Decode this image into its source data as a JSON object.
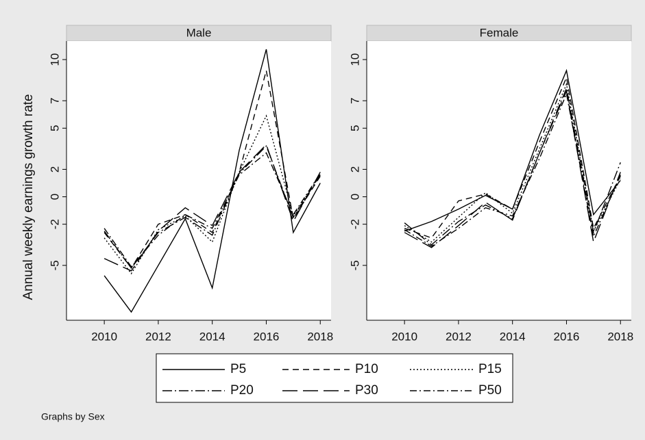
{
  "chart_data": {
    "type": "line",
    "y_label": "Annual weekly earnings growth rate",
    "note": "Graphs by Sex",
    "x": [
      2010,
      2011,
      2012,
      2013,
      2014,
      2015,
      2016,
      2017,
      2018
    ],
    "xlim": [
      2008.6,
      2018.4
    ],
    "xticks": [
      2010,
      2012,
      2014,
      2016,
      2018
    ],
    "ylim": [
      -9,
      11.35
    ],
    "yticks": [
      10,
      7,
      5,
      2,
      0,
      -2,
      -5
    ],
    "series": [
      {
        "name": "P5",
        "color": "#000000",
        "dash": "none"
      },
      {
        "name": "P10",
        "color": "#000000",
        "dash": "9 6"
      },
      {
        "name": "P15",
        "color": "#000000",
        "dash": "2 3"
      },
      {
        "name": "P20",
        "color": "#000000",
        "dash": "14 4 2 4"
      },
      {
        "name": "P30",
        "color": "#000000",
        "dash": "22 8"
      },
      {
        "name": "P50",
        "color": "#000000",
        "dash": "10 4 2 4"
      }
    ],
    "panels": [
      {
        "title": "Male",
        "values": [
          [
            -5.75,
            -8.4,
            -5.0,
            -1.6,
            -6.65,
            3.4,
            10.75,
            -2.6,
            1.0
          ],
          [
            -2.6,
            -5.2,
            -2.0,
            -1.3,
            -2.6,
            1.8,
            9.2,
            -1.6,
            1.5
          ],
          [
            -3.0,
            -5.6,
            -2.4,
            -1.4,
            -3.3,
            1.8,
            5.9,
            -1.4,
            1.6
          ],
          [
            -2.5,
            -5.2,
            -2.6,
            -1.5,
            -2.8,
            1.7,
            3.7,
            -1.5,
            1.6
          ],
          [
            -4.5,
            -5.4,
            -2.5,
            -0.8,
            -2.1,
            1.8,
            3.8,
            -1.8,
            1.8
          ],
          [
            -2.3,
            -5.1,
            -2.8,
            -1.3,
            -2.3,
            1.6,
            3.2,
            -1.3,
            1.7
          ]
        ]
      },
      {
        "title": "Female",
        "values": [
          [
            -2.5,
            -1.8,
            -0.9,
            0.1,
            -0.9,
            4.5,
            9.2,
            -1.3,
            1.2
          ],
          [
            -2.3,
            -3.0,
            -0.3,
            0.2,
            -0.9,
            4.0,
            8.7,
            -2.3,
            1.5
          ],
          [
            -2.1,
            -3.3,
            -1.5,
            0.3,
            -1.2,
            3.5,
            8.2,
            -2.5,
            1.3
          ],
          [
            -1.9,
            -3.5,
            -1.8,
            -0.6,
            -1.6,
            3.2,
            7.9,
            -2.6,
            2.5
          ],
          [
            -2.6,
            -3.7,
            -2.1,
            -0.4,
            -1.7,
            3.2,
            7.7,
            -3.3,
            1.8
          ],
          [
            -2.4,
            -3.6,
            -2.3,
            -0.8,
            -1.4,
            2.8,
            7.5,
            -2.9,
            1.6
          ]
        ]
      }
    ]
  }
}
